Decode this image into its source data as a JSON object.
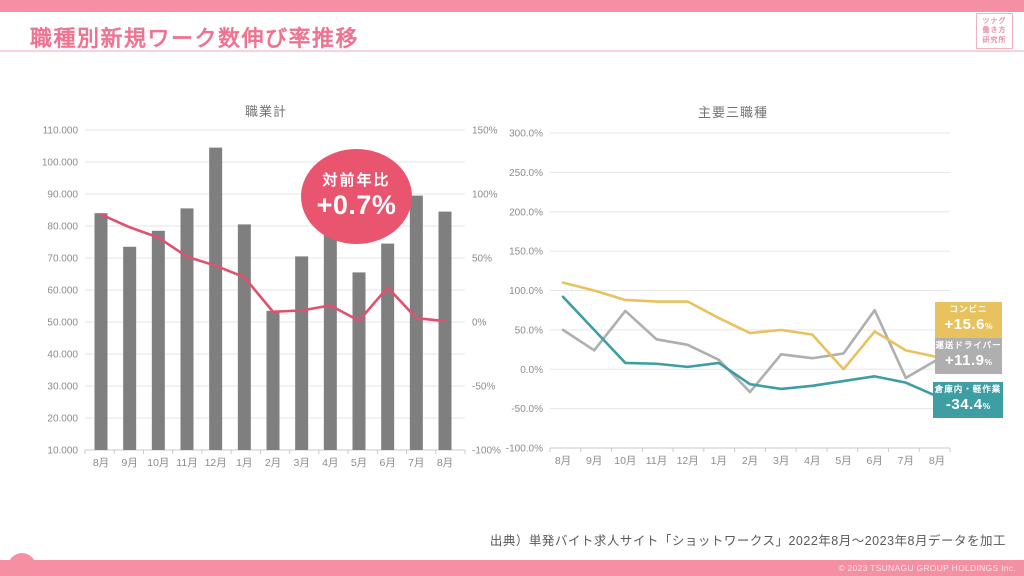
{
  "header": {
    "title": "職種別新規ワーク数伸び率推移",
    "logo": {
      "lines": [
        "ツナグ",
        "働き方",
        "研究所"
      ]
    }
  },
  "colors": {
    "brand_pink": "#F58FA2",
    "title_pink": "#EF7391",
    "badge_pink": "#E9546F",
    "yoy_line_pink": "#E0516F",
    "bar_gray": "#7F7F7F",
    "conbini_yellow": "#E7C25E",
    "driver_gray": "#AFAFAF",
    "warehouse_teal": "#3E9EA4",
    "grid_gray": "#E6E6E6"
  },
  "chart_data": [
    {
      "type": "bar",
      "title": "職業計",
      "categories": [
        "8月",
        "9月",
        "10月",
        "11月",
        "12月",
        "1月",
        "2月",
        "3月",
        "4月",
        "5月",
        "6月",
        "7月",
        "8月"
      ],
      "series": [
        {
          "id": "new-works-bars",
          "name": "新規ワーク数",
          "type": "bar",
          "axis": "left",
          "color": "#7F7F7F",
          "values": [
            84000,
            73500,
            78500,
            85500,
            104500,
            80500,
            53500,
            70500,
            79000,
            65500,
            74500,
            89500,
            84500
          ]
        },
        {
          "id": "yoy-line",
          "name": "対前年比",
          "type": "line",
          "axis": "right",
          "color": "#E0516F",
          "values": [
            84,
            74,
            66,
            51,
            44,
            35,
            8,
            9,
            13,
            1,
            27,
            3,
            0.7
          ]
        }
      ],
      "left_axis": {
        "min": 10000,
        "max": 110000,
        "tick_labels": [
          "110.000",
          "100.000",
          "90.000",
          "80.000",
          "70.000",
          "60.000",
          "50.000",
          "40.000",
          "30.000",
          "20.000",
          "10.000"
        ]
      },
      "right_axis": {
        "min": -100,
        "max": 150,
        "tick_labels": [
          "150%",
          "100%",
          "50%",
          "0%",
          "-50%",
          "-100%"
        ]
      },
      "badge": {
        "label": "対前年比",
        "value": "+0.7%"
      },
      "grid": true
    },
    {
      "type": "line",
      "title": "主要三職種",
      "categories": [
        "8月",
        "9月",
        "10月",
        "11月",
        "12月",
        "1月",
        "2月",
        "3月",
        "4月",
        "5月",
        "6月",
        "7月",
        "8月"
      ],
      "series": [
        {
          "id": "conbini",
          "name": "コンビニ",
          "color": "#E7C25E",
          "values": [
            110,
            100,
            88,
            86,
            86,
            65,
            46,
            50,
            44,
            0,
            48,
            24,
            15.6
          ],
          "badge": {
            "value": "+15.6",
            "unit": "%"
          }
        },
        {
          "id": "driver",
          "name": "運送ドライバー",
          "color": "#AFAFAF",
          "values": [
            50,
            24,
            74,
            38,
            31,
            12,
            -29,
            19,
            14,
            20,
            75,
            -11,
            11.9
          ],
          "badge": {
            "value": "+11.9",
            "unit": "%"
          }
        },
        {
          "id": "warehouse",
          "name": "倉庫内・軽作業",
          "color": "#3E9EA4",
          "values": [
            92,
            50,
            8,
            7,
            3,
            8,
            -19,
            -25,
            -21,
            -15,
            -9,
            -17,
            -34.4
          ],
          "badge": {
            "value": "-34.4",
            "unit": "%"
          }
        }
      ],
      "y_axis": {
        "min": -100,
        "max": 300,
        "tick_labels": [
          "300.0%",
          "250.0%",
          "200.0%",
          "150.0%",
          "100.0%",
          "50.0%",
          "0.0%",
          "-50.0%",
          "-100.0%"
        ]
      },
      "grid": true,
      "legend_position": "right"
    }
  ],
  "source_note": "出典）単発バイト求人サイト「ショットワークス」2022年8月～2023年8月データを加工",
  "footer": {
    "copyright": "© 2023 TSUNAGU GROUP HOLDINGS Inc."
  }
}
